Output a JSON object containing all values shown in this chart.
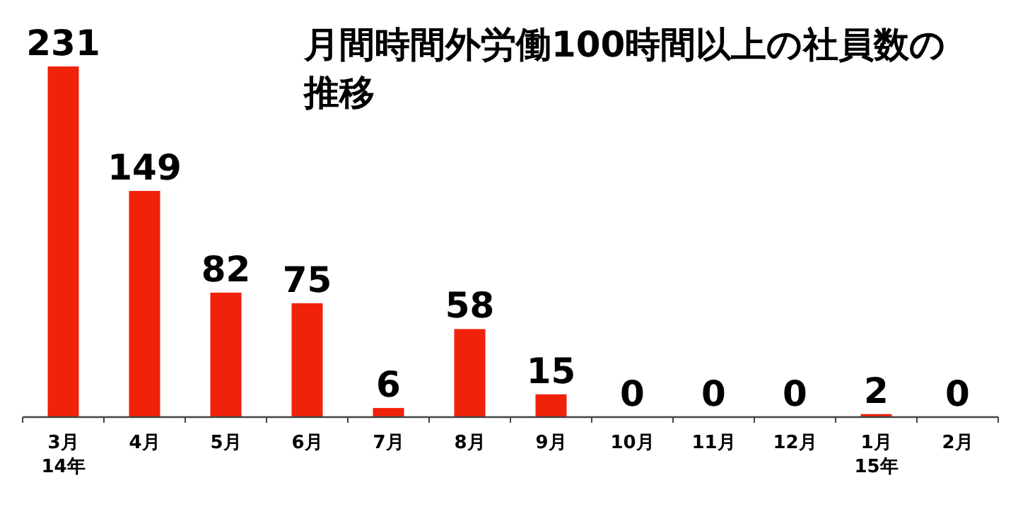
{
  "chart_data": {
    "type": "bar",
    "title": "月間時間外労働100時間以上の社員数の推移",
    "categories": [
      "3月\n14年",
      "4月",
      "5月",
      "6月",
      "7月",
      "8月",
      "9月",
      "10月",
      "11月",
      "12月",
      "1月\n15年",
      "2月"
    ],
    "values": [
      231,
      149,
      82,
      75,
      6,
      58,
      15,
      0,
      0,
      0,
      2,
      0
    ],
    "color": "#f0220a",
    "data_labels": true
  }
}
